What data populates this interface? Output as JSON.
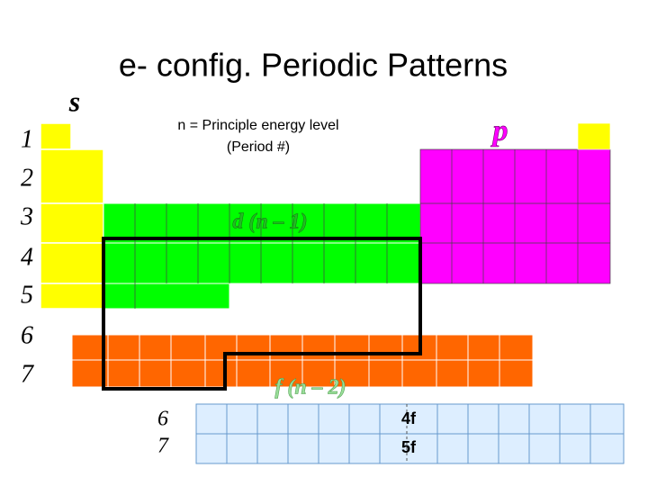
{
  "title": "e- config. Periodic Patterns",
  "blocks": {
    "s": {
      "label": "s"
    },
    "p": {
      "label": "p"
    },
    "d": {
      "label": "d (n – 1)"
    },
    "f": {
      "label": "f (n – 2)"
    }
  },
  "note": {
    "line1": "n = Principle energy level",
    "line2": "(Period #)"
  },
  "periods": [
    "1",
    "2",
    "3",
    "4",
    "5",
    "6",
    "7"
  ],
  "f_rows": {
    "periods": [
      "6",
      "7"
    ],
    "labels": [
      "4f",
      "5f"
    ]
  }
}
